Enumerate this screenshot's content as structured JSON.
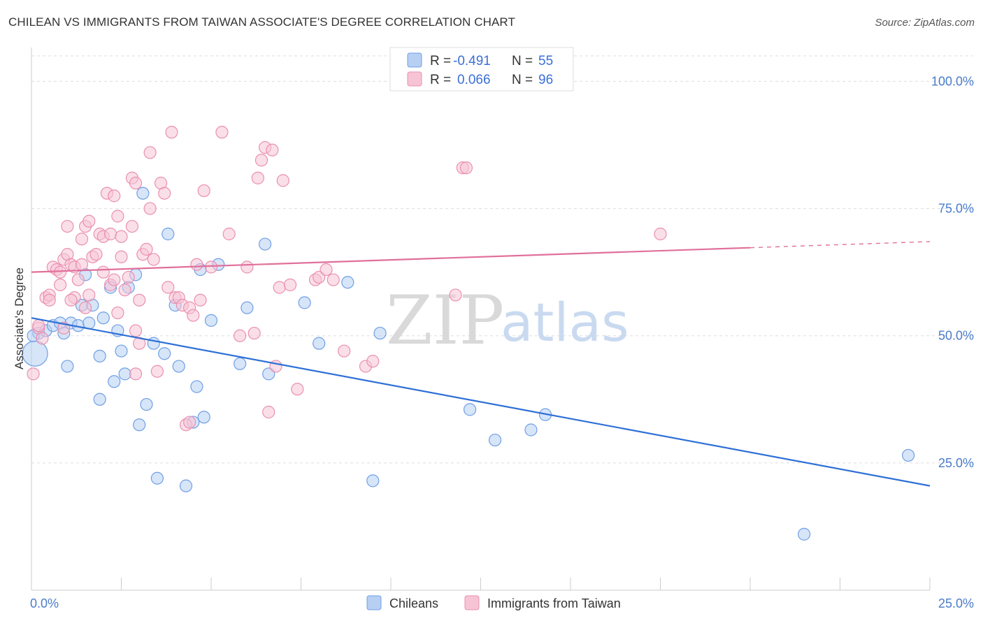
{
  "title": "CHILEAN VS IMMIGRANTS FROM TAIWAN ASSOCIATE'S DEGREE CORRELATION CHART",
  "source": "Source: ZipAtlas.com",
  "watermark": {
    "zip": "ZIP",
    "atlas": "atlas"
  },
  "colors": {
    "blue": "#6f9fe6",
    "blue_fill": "#b7cff3",
    "blue_line": "#2d6fd6",
    "pink": "#eb8fb0",
    "pink_fill": "#f6c4d5",
    "pink_line": "#e0709a",
    "grid": "#dddddd"
  },
  "legend": {
    "rows": [
      {
        "r_label": "R =",
        "r_value": "-0.491",
        "n_label": "N =",
        "n_value": "55"
      },
      {
        "r_label": "R =",
        "r_value": "0.066",
        "n_label": "N =",
        "n_value": "96"
      }
    ]
  },
  "chart_data": {
    "type": "scatter",
    "ylabel": "Associate's Degree",
    "xlim": [
      0,
      25
    ],
    "ylim": [
      0,
      105
    ],
    "x_tick_labels": [
      "0.0%",
      "25.0%"
    ],
    "y_ticks": [
      25,
      50,
      75,
      100
    ],
    "y_tick_labels": [
      "25.0%",
      "50.0%",
      "75.0%",
      "100.0%"
    ],
    "grid": true,
    "legend_position": "top-center",
    "series": [
      {
        "name": "Chileans",
        "trend": {
          "x": [
            0,
            25
          ],
          "y": [
            53.5,
            20.5
          ],
          "dashed_from": null
        },
        "points": [
          [
            0.1,
            46.5
          ],
          [
            0.2,
            50.5
          ],
          [
            0.4,
            51
          ],
          [
            0.6,
            52
          ],
          [
            0.8,
            52.5
          ],
          [
            0.9,
            50.5
          ],
          [
            1.0,
            44
          ],
          [
            1.1,
            52.5
          ],
          [
            1.3,
            52
          ],
          [
            1.4,
            56
          ],
          [
            1.5,
            62
          ],
          [
            1.6,
            52.5
          ],
          [
            1.7,
            56
          ],
          [
            1.9,
            37.5
          ],
          [
            1.9,
            46
          ],
          [
            2.0,
            53.5
          ],
          [
            2.2,
            59.5
          ],
          [
            2.3,
            41
          ],
          [
            2.4,
            51
          ],
          [
            2.5,
            47
          ],
          [
            2.6,
            42.5
          ],
          [
            2.7,
            59.5
          ],
          [
            2.9,
            62
          ],
          [
            3.0,
            32.5
          ],
          [
            3.1,
            78
          ],
          [
            3.2,
            36.5
          ],
          [
            3.4,
            48.5
          ],
          [
            3.5,
            22
          ],
          [
            3.7,
            46.5
          ],
          [
            3.8,
            70
          ],
          [
            4.0,
            56
          ],
          [
            4.1,
            44
          ],
          [
            4.3,
            20.5
          ],
          [
            4.5,
            33
          ],
          [
            4.6,
            40
          ],
          [
            4.7,
            63
          ],
          [
            4.8,
            34
          ],
          [
            5.0,
            53
          ],
          [
            5.2,
            64
          ],
          [
            5.8,
            44.5
          ],
          [
            6.0,
            55.5
          ],
          [
            6.5,
            68
          ],
          [
            6.6,
            42.5
          ],
          [
            7.6,
            56.5
          ],
          [
            8.0,
            48.5
          ],
          [
            8.8,
            60.5
          ],
          [
            9.5,
            21.5
          ],
          [
            9.7,
            50.5
          ],
          [
            12.2,
            35.5
          ],
          [
            12.9,
            29.5
          ],
          [
            13.9,
            31.5
          ],
          [
            14.3,
            34.5
          ],
          [
            21.5,
            11
          ],
          [
            24.4,
            26.5
          ],
          [
            0.05,
            50
          ]
        ],
        "sizes": {
          "0.1,46.5": "large"
        }
      },
      {
        "name": "Immigrants from Taiwan",
        "trend": {
          "x": [
            0,
            25
          ],
          "y": [
            62.5,
            68.5
          ],
          "dashed_from": 20
        },
        "points": [
          [
            0.05,
            42.5
          ],
          [
            0.2,
            51.5
          ],
          [
            0.3,
            49.5
          ],
          [
            0.4,
            57.5
          ],
          [
            0.5,
            58
          ],
          [
            0.5,
            57
          ],
          [
            0.6,
            63.5
          ],
          [
            0.7,
            63
          ],
          [
            0.8,
            60
          ],
          [
            0.8,
            62.5
          ],
          [
            0.9,
            51.5
          ],
          [
            0.9,
            65
          ],
          [
            1.0,
            66
          ],
          [
            1.1,
            64
          ],
          [
            1.0,
            71.5
          ],
          [
            1.2,
            63.5
          ],
          [
            1.2,
            57.5
          ],
          [
            1.3,
            61
          ],
          [
            1.4,
            69
          ],
          [
            1.4,
            64
          ],
          [
            1.5,
            55.5
          ],
          [
            1.5,
            71.5
          ],
          [
            1.6,
            58
          ],
          [
            1.6,
            72.5
          ],
          [
            1.7,
            65.5
          ],
          [
            1.8,
            66
          ],
          [
            1.9,
            70
          ],
          [
            2.0,
            69.5
          ],
          [
            2.0,
            62.5
          ],
          [
            2.1,
            78
          ],
          [
            2.2,
            70
          ],
          [
            2.2,
            60
          ],
          [
            2.3,
            77.5
          ],
          [
            2.3,
            61
          ],
          [
            2.4,
            73.5
          ],
          [
            2.4,
            54.5
          ],
          [
            2.5,
            65.5
          ],
          [
            2.5,
            69.5
          ],
          [
            2.6,
            59
          ],
          [
            2.7,
            61.5
          ],
          [
            2.8,
            71.5
          ],
          [
            2.8,
            81
          ],
          [
            2.9,
            80
          ],
          [
            2.9,
            51
          ],
          [
            3.0,
            57
          ],
          [
            3.1,
            66
          ],
          [
            3.2,
            67
          ],
          [
            3.3,
            86
          ],
          [
            3.3,
            75
          ],
          [
            3.4,
            65
          ],
          [
            3.5,
            43
          ],
          [
            3.6,
            80
          ],
          [
            3.7,
            78
          ],
          [
            3.8,
            59.5
          ],
          [
            3.9,
            90
          ],
          [
            4.0,
            57.5
          ],
          [
            4.1,
            57.5
          ],
          [
            4.2,
            56
          ],
          [
            4.3,
            32.5
          ],
          [
            4.4,
            55.5
          ],
          [
            4.5,
            54
          ],
          [
            4.6,
            64
          ],
          [
            4.7,
            57
          ],
          [
            4.8,
            78.5
          ],
          [
            5.0,
            63.5
          ],
          [
            5.3,
            90
          ],
          [
            5.5,
            70
          ],
          [
            5.8,
            50
          ],
          [
            6.0,
            63.5
          ],
          [
            6.2,
            50.5
          ],
          [
            6.3,
            81
          ],
          [
            6.4,
            84.5
          ],
          [
            6.5,
            87
          ],
          [
            6.7,
            86.5
          ],
          [
            6.8,
            44
          ],
          [
            6.9,
            59.5
          ],
          [
            7.0,
            80.5
          ],
          [
            7.2,
            60
          ],
          [
            7.4,
            39.5
          ],
          [
            7.9,
            61
          ],
          [
            8.0,
            61.5
          ],
          [
            8.2,
            63
          ],
          [
            8.4,
            61
          ],
          [
            8.7,
            47
          ],
          [
            9.3,
            44
          ],
          [
            9.5,
            45
          ],
          [
            11.8,
            58
          ],
          [
            12.0,
            83
          ],
          [
            12.1,
            83
          ],
          [
            17.5,
            70
          ],
          [
            3.0,
            48.5
          ],
          [
            2.9,
            42.5
          ],
          [
            1.1,
            57
          ],
          [
            0.2,
            52
          ],
          [
            6.6,
            35
          ],
          [
            4.4,
            33
          ]
        ]
      }
    ],
    "bottom_legend": [
      "Chileans",
      "Immigrants from Taiwan"
    ]
  }
}
